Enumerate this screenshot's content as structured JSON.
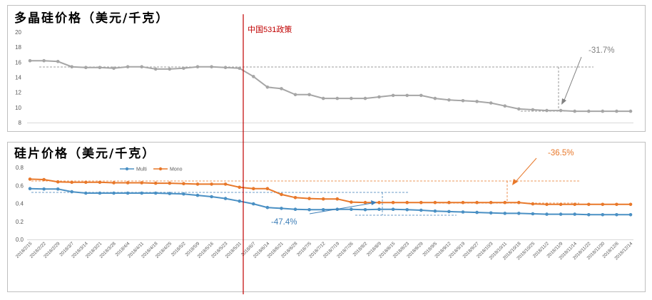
{
  "policy_label": "中国531政策",
  "chart_data": [
    {
      "type": "line",
      "title": "多晶硅价格（美元/千克）",
      "ylim": [
        8,
        20
      ],
      "yticks": [
        8,
        10,
        12,
        14,
        16,
        18,
        20
      ],
      "grid": false,
      "series": [
        {
          "color": "#a6a6a6",
          "values": [
            16.2,
            16.2,
            16.1,
            15.4,
            15.3,
            15.3,
            15.2,
            15.4,
            15.4,
            15.1,
            15.1,
            15.2,
            15.4,
            15.4,
            15.3,
            15.2,
            14.1,
            12.7,
            12.5,
            11.7,
            11.7,
            11.2,
            11.2,
            11.2,
            11.2,
            11.4,
            11.6,
            11.6,
            11.6,
            11.2,
            11.0,
            10.9,
            10.8,
            10.6,
            10.2,
            9.8,
            9.7,
            9.6,
            9.6,
            9.5,
            9.5,
            9.5,
            9.5,
            9.5
          ]
        }
      ],
      "annotations": [
        {
          "text": "-31.7%",
          "color": "#808080"
        }
      ]
    },
    {
      "type": "line",
      "title": "硅片价格（美元/千克）",
      "ylim": [
        0,
        0.8
      ],
      "yticks": [
        "0.0",
        "0.2",
        "0.4",
        "0.6",
        "0.8"
      ],
      "grid": false,
      "legend": "top-left",
      "categories": [
        "2018/2/15",
        "2018/2/22",
        "2018/2/29",
        "2018/3/7",
        "2018/3/14",
        "2018/3/21",
        "2018/3/28",
        "2018/4/4",
        "2018/4/11",
        "2018/4/18",
        "2018/4/25",
        "2018/5/2",
        "2018/5/9",
        "2018/5/16",
        "2018/5/23",
        "2018/5/31",
        "2018/6/7",
        "2018/6/14",
        "2018/6/21",
        "2018/6/28",
        "2018/7/5",
        "2018/7/12",
        "2018/7/19",
        "2018/7/26",
        "2018/8/2",
        "2018/8/9",
        "2018/8/15",
        "2018/8/23",
        "2018/8/29",
        "2018/9/5",
        "2018/9/12",
        "2018/9/19",
        "2018/9/27",
        "2018/10/3",
        "2018/10/11",
        "2018/10/18",
        "2018/10/25",
        "2018/11/2",
        "2018/11/9",
        "2018/11/14",
        "2018/11/22",
        "2018/11/30",
        "2018/12/6",
        "2018/12/14"
      ],
      "series": [
        {
          "name": "Multi",
          "color": "#4a90c4",
          "values": [
            0.565,
            0.56,
            0.56,
            0.53,
            0.515,
            0.515,
            0.515,
            0.515,
            0.515,
            0.515,
            0.51,
            0.505,
            0.49,
            0.475,
            0.455,
            0.425,
            0.395,
            0.355,
            0.345,
            0.335,
            0.33,
            0.33,
            0.335,
            0.335,
            0.33,
            0.335,
            0.335,
            0.33,
            0.325,
            0.315,
            0.31,
            0.305,
            0.3,
            0.295,
            0.29,
            0.29,
            0.285,
            0.28,
            0.28,
            0.28,
            0.275,
            0.275,
            0.275,
            0.275
          ]
        },
        {
          "name": "Mono",
          "color": "#e8782a",
          "values": [
            0.67,
            0.665,
            0.64,
            0.635,
            0.635,
            0.635,
            0.63,
            0.63,
            0.63,
            0.625,
            0.625,
            0.62,
            0.615,
            0.615,
            0.615,
            0.58,
            0.565,
            0.565,
            0.5,
            0.465,
            0.455,
            0.45,
            0.45,
            0.415,
            0.41,
            0.41,
            0.41,
            0.41,
            0.41,
            0.41,
            0.41,
            0.41,
            0.41,
            0.41,
            0.41,
            0.41,
            0.395,
            0.39,
            0.39,
            0.39,
            0.39,
            0.39,
            0.39,
            0.39
          ]
        }
      ],
      "annotations": [
        {
          "text": "-36.5%",
          "color": "#e8782a"
        },
        {
          "text": "-47.4%",
          "color": "#3e7fb8"
        }
      ]
    }
  ]
}
